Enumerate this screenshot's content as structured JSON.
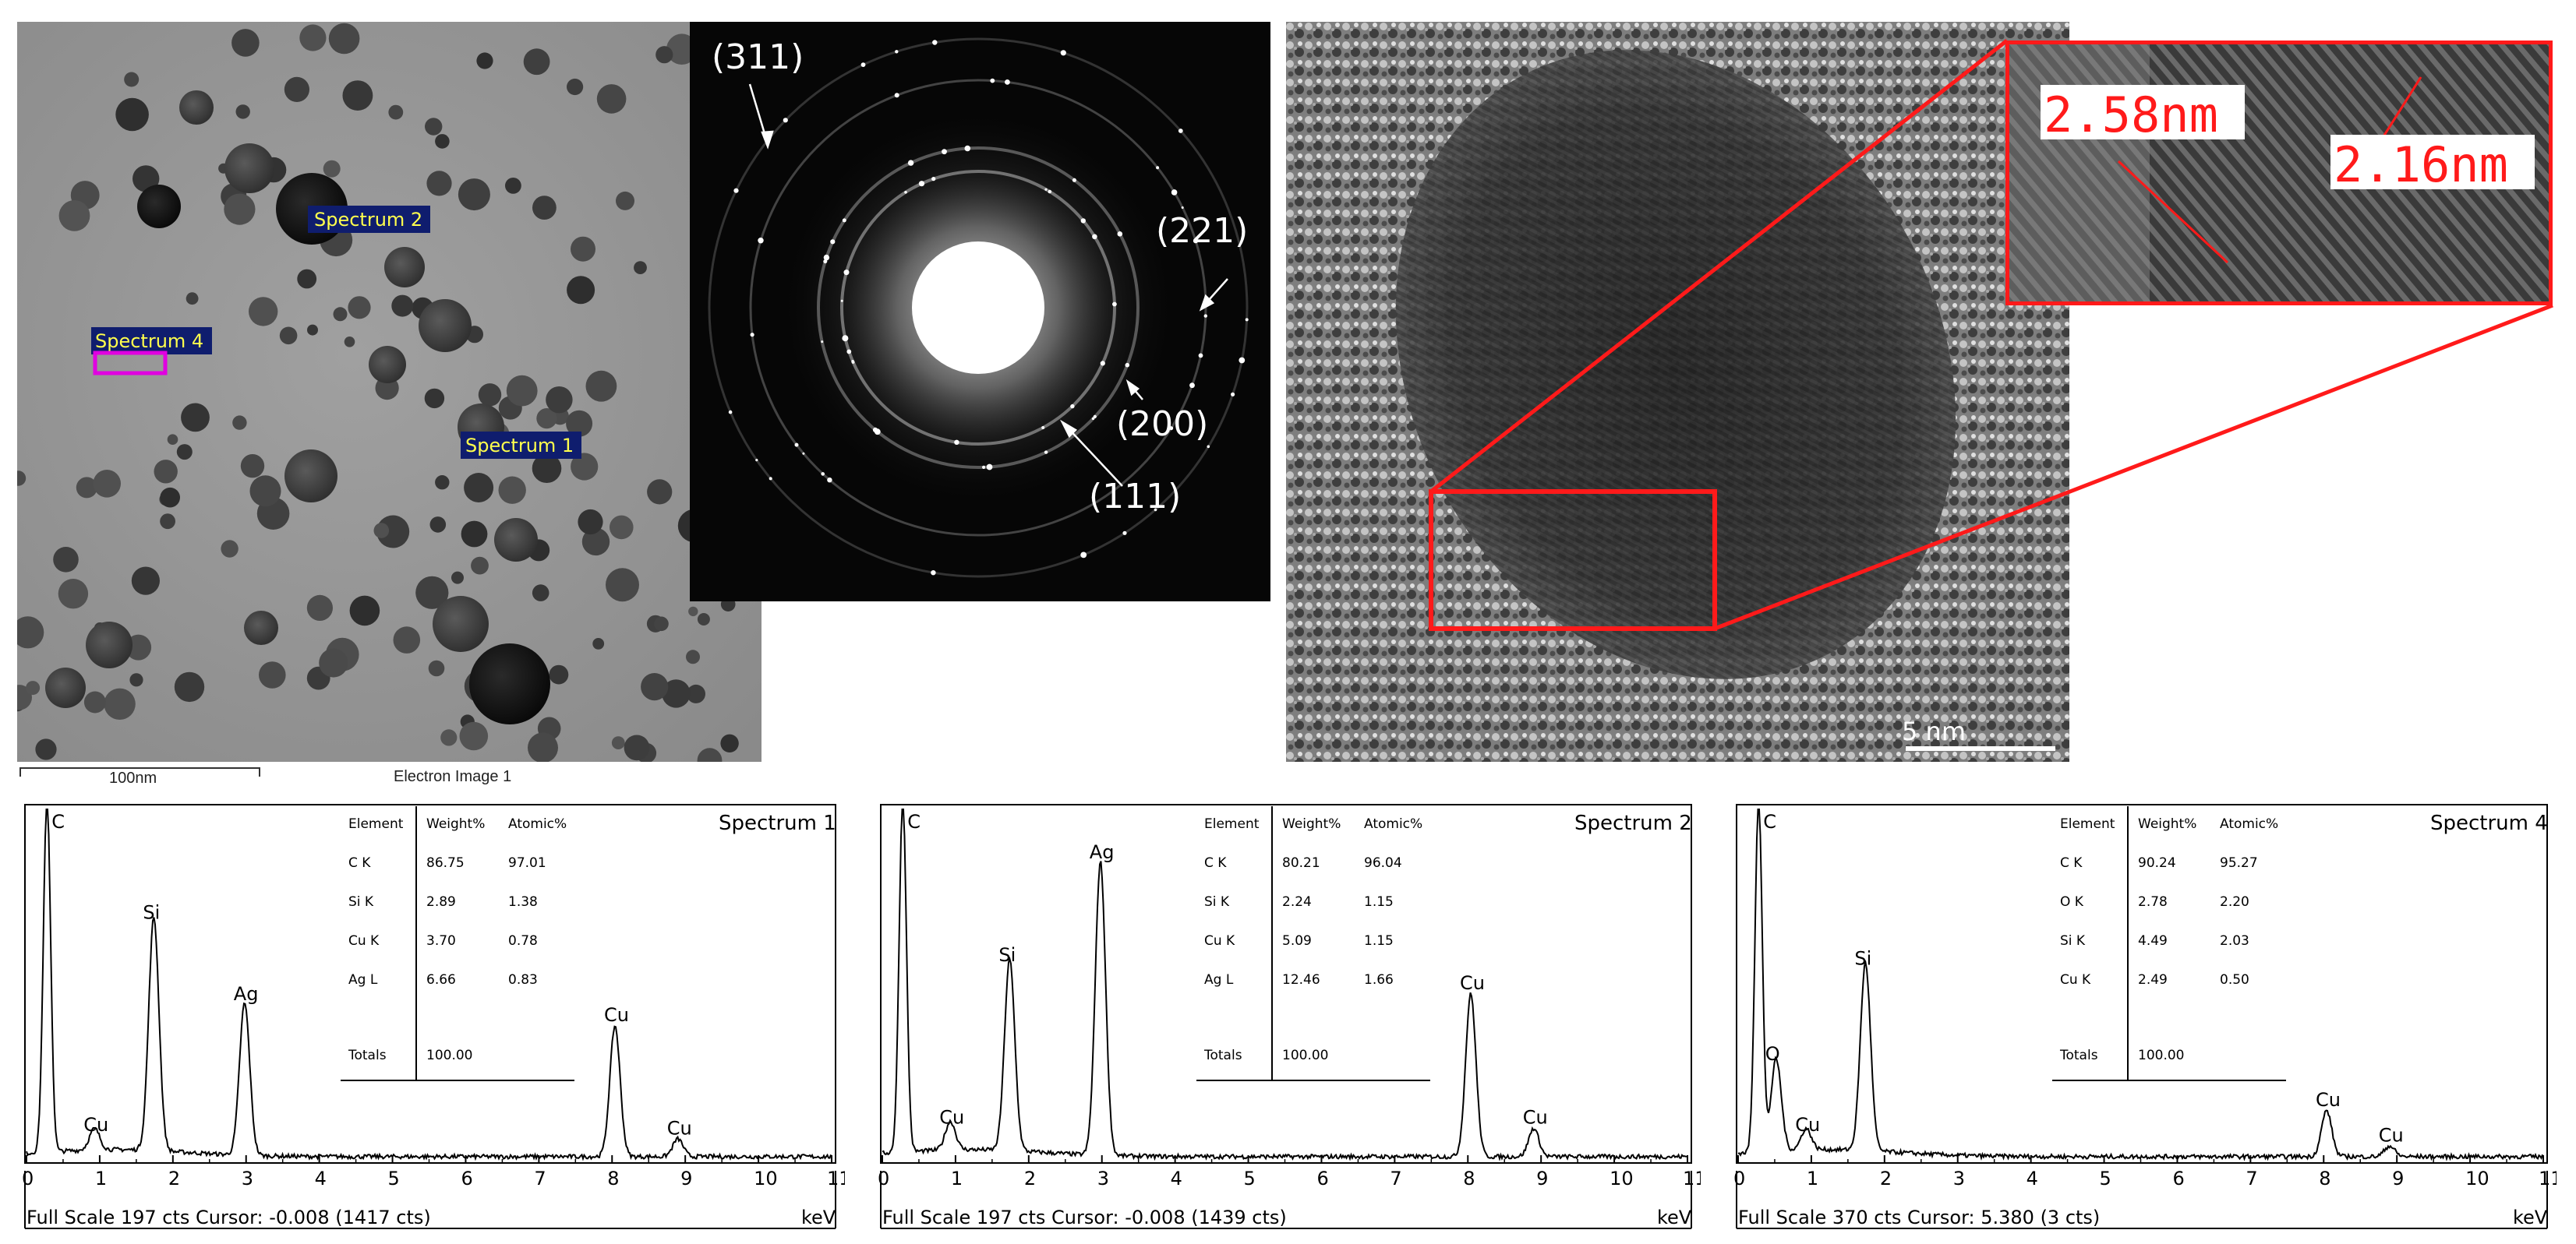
{
  "tem_image": {
    "spectrum_labels": [
      "Spectrum 2",
      "Spectrum 4",
      "Spectrum 1"
    ],
    "scale_bar_label": "100nm",
    "caption": "Electron Image 1"
  },
  "saed": {
    "ring_labels": [
      "(311)",
      "(221)",
      "(200)",
      "(111)"
    ]
  },
  "hrtem": {
    "lattice_labels": [
      "2.58nm",
      "2.16nm"
    ],
    "scale_bar_label": "5 nm"
  },
  "chart_data": [
    {
      "type": "line",
      "title": "Spectrum 1",
      "xlabel": "keV",
      "xlim": [
        0,
        11
      ],
      "ticks": [
        "0",
        "1",
        "2",
        "3",
        "4",
        "5",
        "6",
        "7",
        "8",
        "9",
        "10",
        "11"
      ],
      "footer": "Full Scale 197 cts Cursor: -0.008  (1417 cts)",
      "peaks": [
        {
          "label": "C",
          "x": 0.28,
          "y": 1.0
        },
        {
          "label": "Cu",
          "x": 0.93,
          "y": 0.06
        },
        {
          "label": "Si",
          "x": 1.74,
          "y": 0.66
        },
        {
          "label": "Ag",
          "x": 2.98,
          "y": 0.43
        },
        {
          "label": "Cu",
          "x": 8.04,
          "y": 0.37
        },
        {
          "label": "Cu",
          "x": 8.9,
          "y": 0.05
        }
      ],
      "table": {
        "headers": [
          "Element",
          "Weight%",
          "Atomic%"
        ],
        "rows": [
          [
            "C K",
            "86.75",
            "97.01"
          ],
          [
            "Si K",
            "2.89",
            "1.38"
          ],
          [
            "Cu K",
            "3.70",
            "0.78"
          ],
          [
            "Ag L",
            "6.66",
            "0.83"
          ]
        ],
        "totals": [
          "Totals",
          "100.00",
          ""
        ]
      }
    },
    {
      "type": "line",
      "title": "Spectrum 2",
      "xlabel": "keV",
      "xlim": [
        0,
        11
      ],
      "ticks": [
        "0",
        "1",
        "2",
        "3",
        "4",
        "5",
        "6",
        "7",
        "8",
        "9",
        "10",
        "11"
      ],
      "footer": "Full Scale 197 cts Cursor: -0.008  (1439 cts)",
      "peaks": [
        {
          "label": "C",
          "x": 0.28,
          "y": 1.0
        },
        {
          "label": "Cu",
          "x": 0.93,
          "y": 0.08
        },
        {
          "label": "Si",
          "x": 1.74,
          "y": 0.54
        },
        {
          "label": "Ag",
          "x": 2.98,
          "y": 0.83
        },
        {
          "label": "Cu",
          "x": 8.04,
          "y": 0.46
        },
        {
          "label": "Cu",
          "x": 8.9,
          "y": 0.08
        }
      ],
      "table": {
        "headers": [
          "Element",
          "Weight%",
          "Atomic%"
        ],
        "rows": [
          [
            "C K",
            "80.21",
            "96.04"
          ],
          [
            "Si K",
            "2.24",
            "1.15"
          ],
          [
            "Cu K",
            "5.09",
            "1.15"
          ],
          [
            "Ag L",
            "12.46",
            "1.66"
          ]
        ],
        "totals": [
          "Totals",
          "100.00",
          ""
        ]
      }
    },
    {
      "type": "line",
      "title": "Spectrum 4",
      "xlabel": "keV",
      "xlim": [
        0,
        11
      ],
      "ticks": [
        "0",
        "1",
        "2",
        "3",
        "4",
        "5",
        "6",
        "7",
        "8",
        "9",
        "10",
        "11"
      ],
      "footer": "Full Scale 370 cts Cursor: 5.380  (3 cts)",
      "peaks": [
        {
          "label": "C",
          "x": 0.28,
          "y": 1.0
        },
        {
          "label": "O",
          "x": 0.52,
          "y": 0.26
        },
        {
          "label": "Cu",
          "x": 0.93,
          "y": 0.06
        },
        {
          "label": "Si",
          "x": 1.74,
          "y": 0.53
        },
        {
          "label": "Cu",
          "x": 8.04,
          "y": 0.13
        },
        {
          "label": "Cu",
          "x": 8.9,
          "y": 0.03
        }
      ],
      "table": {
        "headers": [
          "Element",
          "Weight%",
          "Atomic%"
        ],
        "rows": [
          [
            "C K",
            "90.24",
            "95.27"
          ],
          [
            "O K",
            "2.78",
            "2.20"
          ],
          [
            "Si K",
            "4.49",
            "2.03"
          ],
          [
            "Cu K",
            "2.49",
            "0.50"
          ]
        ],
        "totals": [
          "Totals",
          "100.00",
          ""
        ]
      }
    }
  ]
}
